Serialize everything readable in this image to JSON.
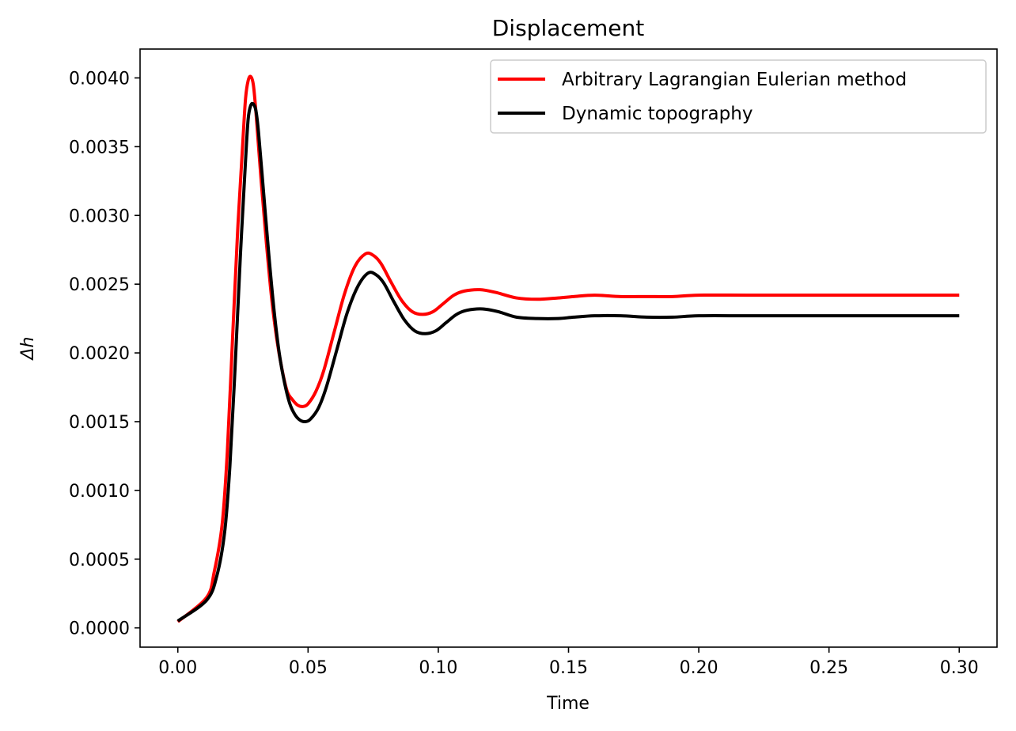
{
  "chart_data": {
    "type": "line",
    "title": "Displacement",
    "xlabel": "Time",
    "ylabel": "Δh",
    "xlim": [
      -0.0145,
      0.3145
    ],
    "ylim": [
      -0.00014,
      0.00421
    ],
    "xticks": [
      0.0,
      0.05,
      0.1,
      0.15,
      0.2,
      0.25,
      0.3
    ],
    "xtick_labels": [
      "0.00",
      "0.05",
      "0.10",
      "0.15",
      "0.20",
      "0.25",
      "0.30"
    ],
    "yticks": [
      0.0,
      0.0005,
      0.001,
      0.0015,
      0.002,
      0.0025,
      0.003,
      0.0035,
      0.004
    ],
    "ytick_labels": [
      "0.0000",
      "0.0005",
      "0.0010",
      "0.0015",
      "0.0020",
      "0.0025",
      "0.0030",
      "0.0035",
      "0.0040"
    ],
    "grid": false,
    "legend_position": "top-right",
    "series": [
      {
        "name": "Arbitrary Lagrangian Eulerian method",
        "color": "#ff0000",
        "x": [
          0.0,
          0.011,
          0.014,
          0.017,
          0.019,
          0.021,
          0.023,
          0.025,
          0.026,
          0.027,
          0.028,
          0.029,
          0.03,
          0.032,
          0.034,
          0.036,
          0.038,
          0.04,
          0.042,
          0.044,
          0.046,
          0.048,
          0.05,
          0.053,
          0.056,
          0.06,
          0.064,
          0.068,
          0.072,
          0.075,
          0.078,
          0.082,
          0.086,
          0.09,
          0.094,
          0.098,
          0.102,
          0.106,
          0.11,
          0.116,
          0.122,
          0.13,
          0.138,
          0.146,
          0.152,
          0.16,
          0.17,
          0.18,
          0.19,
          0.2,
          0.22,
          0.25,
          0.28,
          0.3
        ],
        "y": [
          4.5e-05,
          0.00022,
          0.00041,
          0.00075,
          0.00128,
          0.0021,
          0.0029,
          0.00355,
          0.00385,
          0.00398,
          0.00401,
          0.00395,
          0.00375,
          0.00325,
          0.0028,
          0.0024,
          0.0021,
          0.00188,
          0.00172,
          0.00166,
          0.00162,
          0.00161,
          0.00163,
          0.00172,
          0.00187,
          0.00215,
          0.00243,
          0.00263,
          0.00272,
          0.00271,
          0.00265,
          0.00251,
          0.00238,
          0.0023,
          0.00228,
          0.0023,
          0.00236,
          0.00242,
          0.00245,
          0.00246,
          0.00244,
          0.0024,
          0.00239,
          0.0024,
          0.00241,
          0.00242,
          0.00241,
          0.00241,
          0.00241,
          0.00242,
          0.00242,
          0.00242,
          0.00242,
          0.00242
        ]
      },
      {
        "name": "Dynamic topography",
        "color": "#000000",
        "x": [
          0.0,
          0.011,
          0.015,
          0.018,
          0.02,
          0.022,
          0.024,
          0.026,
          0.027,
          0.028,
          0.029,
          0.03,
          0.031,
          0.033,
          0.035,
          0.037,
          0.039,
          0.041,
          0.043,
          0.045,
          0.047,
          0.049,
          0.051,
          0.054,
          0.057,
          0.061,
          0.065,
          0.069,
          0.073,
          0.076,
          0.079,
          0.083,
          0.087,
          0.091,
          0.095,
          0.099,
          0.103,
          0.107,
          0.111,
          0.117,
          0.123,
          0.13,
          0.138,
          0.146,
          0.152,
          0.16,
          0.17,
          0.18,
          0.19,
          0.2,
          0.22,
          0.25,
          0.28,
          0.3
        ],
        "y": [
          5e-05,
          0.0002,
          0.00038,
          0.0007,
          0.00118,
          0.0019,
          0.0027,
          0.0034,
          0.0037,
          0.0038,
          0.00381,
          0.00376,
          0.0036,
          0.00315,
          0.0027,
          0.0023,
          0.00199,
          0.00178,
          0.00163,
          0.00155,
          0.00151,
          0.0015,
          0.00152,
          0.0016,
          0.00175,
          0.00202,
          0.00229,
          0.00248,
          0.00258,
          0.00257,
          0.00251,
          0.00237,
          0.00224,
          0.00216,
          0.00214,
          0.00216,
          0.00222,
          0.00228,
          0.00231,
          0.00232,
          0.0023,
          0.00226,
          0.00225,
          0.00225,
          0.00226,
          0.00227,
          0.00227,
          0.00226,
          0.00226,
          0.00227,
          0.00227,
          0.00227,
          0.00227,
          0.00227
        ]
      }
    ]
  }
}
